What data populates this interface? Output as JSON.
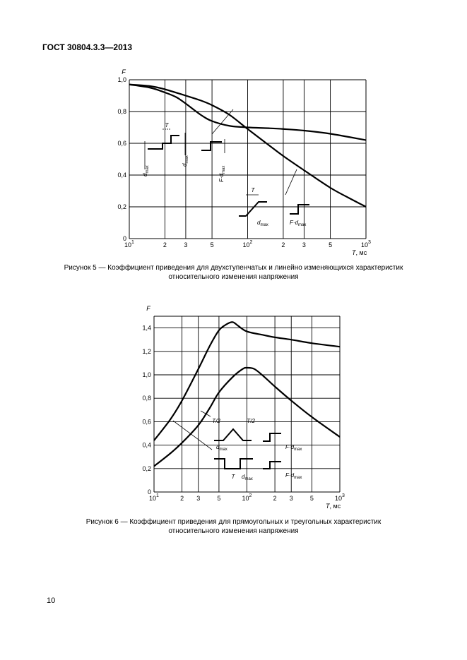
{
  "header": {
    "doc_code": "ГОСТ 30804.3.3—2013"
  },
  "page_number": "10",
  "figures": [
    {
      "caption_lines": [
        "Рисунок 5 — Коэффициент приведения для двухступенчатых и линейно изменяющихся характеристик",
        "относительного изменения напряжения"
      ],
      "inset_labels": [
        "T",
        "dmax/2",
        "dmax/2",
        "F·dmax",
        "T",
        "dmax",
        "F·dmax"
      ]
    },
    {
      "caption_lines": [
        "Рисунок 6 — Коэффициент приведения для прямоугольных и треугольных характеристик",
        "относительного изменения напряжения"
      ],
      "inset_labels": [
        "T/2",
        "T/2",
        "dmax",
        "F·dmax",
        "T",
        "dmax",
        "F·dmax"
      ]
    }
  ],
  "chart_data": [
    {
      "type": "line",
      "xscale": "log",
      "xlim": [
        10,
        1000
      ],
      "ylim": [
        0,
        1.0
      ],
      "ylabel": "F",
      "xlabel": "T, мс",
      "x_ticks": [
        10,
        20,
        30,
        50,
        100,
        200,
        300,
        500,
        1000
      ],
      "x_tick_labels": [
        "10¹",
        "2",
        "3",
        "5",
        "10²",
        "2",
        "3",
        "5",
        "10³"
      ],
      "y_ticks": [
        0,
        0.2,
        0.4,
        0.6,
        0.8,
        1.0
      ],
      "y_tick_labels": [
        "0",
        "0,2",
        "0,4",
        "0,6",
        "0,8",
        "1,0"
      ],
      "grid": true,
      "series": [
        {
          "x": [
            10,
            15,
            20,
            25,
            30,
            40,
            50,
            70,
            100,
            150,
            200,
            300,
            500,
            1000
          ],
          "y": [
            0.97,
            0.95,
            0.92,
            0.89,
            0.85,
            0.78,
            0.74,
            0.71,
            0.7,
            0.695,
            0.69,
            0.68,
            0.66,
            0.62
          ]
        },
        {
          "x": [
            10,
            15,
            20,
            30,
            40,
            50,
            70,
            100,
            150,
            200,
            300,
            500,
            700,
            1000
          ],
          "y": [
            0.97,
            0.96,
            0.94,
            0.9,
            0.87,
            0.84,
            0.78,
            0.69,
            0.59,
            0.52,
            0.43,
            0.32,
            0.26,
            0.2
          ]
        }
      ]
    },
    {
      "type": "line",
      "xscale": "log",
      "xlim": [
        10,
        1000
      ],
      "ylim": [
        0,
        1.5
      ],
      "ylabel": "F",
      "xlabel": "T, мс",
      "x_ticks": [
        10,
        20,
        30,
        50,
        100,
        200,
        300,
        500,
        1000
      ],
      "x_tick_labels": [
        "10¹",
        "2",
        "3",
        "5",
        "10²",
        "2",
        "3",
        "5",
        "10³"
      ],
      "y_ticks": [
        0,
        0.2,
        0.4,
        0.6,
        0.8,
        1.0,
        1.2,
        1.4
      ],
      "y_tick_labels": [
        "0",
        "0,2",
        "0,4",
        "0,6",
        "0,8",
        "1,0",
        "1,2",
        "1,4"
      ],
      "grid": true,
      "series": [
        {
          "x": [
            10,
            15,
            20,
            30,
            40,
            50,
            60,
            70,
            80,
            100,
            150,
            200,
            300,
            500,
            1000
          ],
          "y": [
            0.44,
            0.62,
            0.78,
            1.05,
            1.25,
            1.38,
            1.43,
            1.45,
            1.42,
            1.37,
            1.34,
            1.32,
            1.3,
            1.27,
            1.24
          ]
        },
        {
          "x": [
            10,
            15,
            20,
            30,
            40,
            50,
            70,
            90,
            100,
            120,
            150,
            200,
            300,
            500,
            1000
          ],
          "y": [
            0.22,
            0.33,
            0.42,
            0.57,
            0.72,
            0.85,
            0.98,
            1.05,
            1.06,
            1.05,
            0.99,
            0.9,
            0.78,
            0.64,
            0.47
          ]
        }
      ]
    }
  ]
}
